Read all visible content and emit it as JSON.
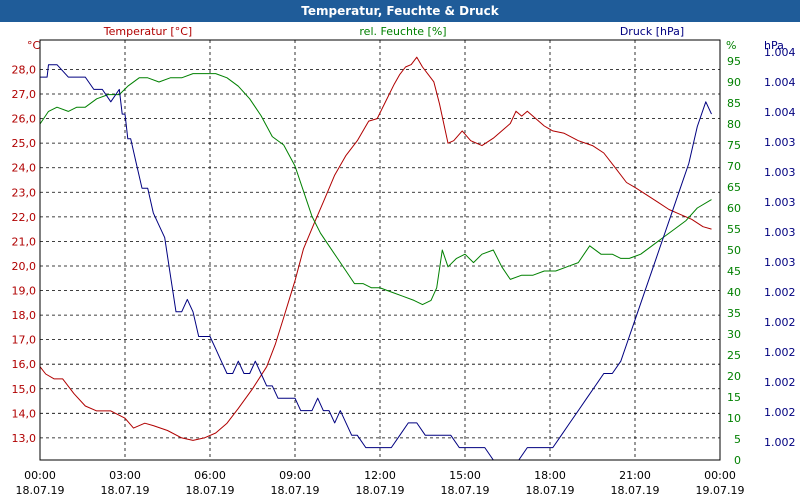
{
  "chart_data": {
    "type": "line",
    "title": "Temperatur, Feuchte & Druck",
    "x_ticks": [
      {
        "time": "00:00",
        "date": "18.07.19"
      },
      {
        "time": "03:00",
        "date": "18.07.19"
      },
      {
        "time": "06:00",
        "date": "18.07.19"
      },
      {
        "time": "09:00",
        "date": "18.07.19"
      },
      {
        "time": "12:00",
        "date": "18.07.19"
      },
      {
        "time": "15:00",
        "date": "18.07.19"
      },
      {
        "time": "18:00",
        "date": "18.07.19"
      },
      {
        "time": "21:00",
        "date": "18.07.19"
      },
      {
        "time": "00:00",
        "date": "19.07.19"
      }
    ],
    "x_range_hours": [
      0,
      24
    ],
    "axes": {
      "temperature": {
        "unit_label": "°C",
        "legend": "Temperatur [°C]",
        "color": "#b00000",
        "range": [
          12.1,
          29.2
        ],
        "ticks": [
          "13,0",
          "14,0",
          "15,0",
          "16,0",
          "17,0",
          "18,0",
          "19,0",
          "20,0",
          "21,0",
          "22,0",
          "23,0",
          "24,0",
          "25,0",
          "26,0",
          "27,0",
          "28,0"
        ]
      },
      "humidity": {
        "unit_label": "%",
        "legend": "rel. Feuchte [%]",
        "color": "#008000",
        "range": [
          0,
          100
        ],
        "ticks": [
          "0",
          "5",
          "10",
          "15",
          "20",
          "25",
          "30",
          "35",
          "40",
          "45",
          "50",
          "55",
          "60",
          "65",
          "70",
          "75",
          "80",
          "85",
          "90",
          "95"
        ]
      },
      "pressure": {
        "unit_label": "hPa",
        "legend": "Druck [hPa]",
        "color": "#000080",
        "range": [
          0,
          17
        ],
        "ticks": [
          "1.002",
          "1.002",
          "1.002",
          "1.002",
          "1.002",
          "1.002",
          "1.003",
          "1.003",
          "1.003",
          "1.003",
          "1.003",
          "1.004",
          "1.004",
          "1.004"
        ]
      }
    },
    "series": [
      {
        "name": "Temperatur [°C]",
        "axis": "temperature",
        "color": "#b00000",
        "x": [
          0,
          0.2,
          0.5,
          0.8,
          1.2,
          1.6,
          2.0,
          2.5,
          3.0,
          3.3,
          3.7,
          4.0,
          4.5,
          5.0,
          5.4,
          5.8,
          6.2,
          6.6,
          7.0,
          7.5,
          8.0,
          8.3,
          8.6,
          9.0,
          9.3,
          9.7,
          10.0,
          10.4,
          10.8,
          11.2,
          11.6,
          11.9,
          12.2,
          12.5,
          12.7,
          12.9,
          13.1,
          13.3,
          13.5,
          13.7,
          13.9,
          14.1,
          14.4,
          14.6,
          14.9,
          15.2,
          15.6,
          16.0,
          16.4,
          16.6,
          16.8,
          17.0,
          17.2,
          17.5,
          17.8,
          18.1,
          18.5,
          19.0,
          19.5,
          19.9,
          20.3,
          20.7,
          21.0,
          21.4,
          21.8,
          22.2,
          22.6,
          23.0,
          23.4,
          23.7
        ],
        "y": [
          15.9,
          15.6,
          15.4,
          15.4,
          14.8,
          14.3,
          14.1,
          14.1,
          13.8,
          13.4,
          13.6,
          13.5,
          13.3,
          13.0,
          12.9,
          13.0,
          13.2,
          13.6,
          14.2,
          15.0,
          15.9,
          16.8,
          17.9,
          19.4,
          20.7,
          21.8,
          22.6,
          23.7,
          24.5,
          25.1,
          25.9,
          26.0,
          26.7,
          27.4,
          27.8,
          28.1,
          28.2,
          28.5,
          28.1,
          27.8,
          27.5,
          26.6,
          25.0,
          25.1,
          25.5,
          25.1,
          24.9,
          25.2,
          25.6,
          25.8,
          26.3,
          26.1,
          26.3,
          26.0,
          25.7,
          25.5,
          25.4,
          25.1,
          24.9,
          24.6,
          24.0,
          23.4,
          23.2,
          22.9,
          22.6,
          22.3,
          22.1,
          21.9,
          21.6,
          21.5
        ]
      },
      {
        "name": "rel. Feuchte [%]",
        "axis": "humidity",
        "color": "#008000",
        "x": [
          0,
          0.3,
          0.6,
          1.0,
          1.3,
          1.6,
          2.0,
          2.4,
          2.8,
          3.1,
          3.5,
          3.8,
          4.2,
          4.6,
          5.0,
          5.4,
          5.8,
          6.2,
          6.6,
          7.0,
          7.4,
          7.8,
          8.2,
          8.6,
          9.0,
          9.3,
          9.6,
          9.9,
          10.2,
          10.5,
          10.8,
          11.1,
          11.4,
          11.7,
          12.0,
          12.4,
          12.8,
          13.2,
          13.5,
          13.8,
          14.0,
          14.2,
          14.4,
          14.7,
          15.0,
          15.3,
          15.6,
          16.0,
          16.3,
          16.6,
          17.0,
          17.4,
          17.8,
          18.2,
          18.6,
          19.0,
          19.4,
          19.8,
          20.2,
          20.5,
          20.8,
          21.2,
          21.6,
          22.0,
          22.4,
          22.8,
          23.2,
          23.7
        ],
        "y": [
          80,
          83,
          84,
          83,
          84,
          84,
          86,
          87,
          87,
          89,
          91,
          91,
          90,
          91,
          91,
          92,
          92,
          92,
          91,
          89,
          86,
          82,
          77,
          75,
          70,
          64,
          58,
          54,
          51,
          48,
          45,
          42,
          42,
          41,
          41,
          40,
          39,
          38,
          37,
          38,
          41,
          50,
          46,
          48,
          49,
          47,
          49,
          50,
          46,
          43,
          44,
          44,
          45,
          45,
          46,
          47,
          51,
          49,
          49,
          48,
          48,
          49,
          51,
          53,
          55,
          57,
          60,
          62
        ]
      },
      {
        "name": "Druck [hPa]",
        "axis": "pressure",
        "color": "#000080",
        "x": [
          0,
          0.25,
          0.3,
          0.6,
          1.0,
          1.3,
          1.6,
          1.9,
          2.2,
          2.5,
          2.8,
          2.9,
          3.0,
          3.1,
          3.2,
          3.4,
          3.6,
          3.8,
          4.0,
          4.2,
          4.4,
          4.6,
          4.8,
          5.0,
          5.2,
          5.4,
          5.6,
          5.8,
          6.0,
          6.2,
          6.4,
          6.6,
          6.8,
          7.0,
          7.2,
          7.4,
          7.6,
          7.8,
          8.0,
          8.2,
          8.4,
          8.6,
          8.8,
          9.0,
          9.2,
          9.4,
          9.6,
          9.8,
          10.0,
          10.2,
          10.4,
          10.6,
          10.8,
          11.0,
          11.2,
          11.5,
          11.8,
          12.1,
          12.4,
          12.7,
          13.0,
          13.3,
          13.6,
          13.9,
          14.2,
          14.5,
          14.8,
          15.1,
          15.4,
          15.7,
          16.0,
          16.3,
          16.6,
          16.9,
          17.2,
          17.5,
          17.8,
          18.1,
          18.4,
          18.7,
          19.0,
          19.3,
          19.6,
          19.9,
          20.2,
          20.5,
          20.8,
          21.1,
          21.4,
          21.7,
          22.0,
          22.3,
          22.6,
          22.9,
          23.2,
          23.5,
          23.7
        ],
        "y": [
          15.5,
          15.5,
          16,
          16,
          15.5,
          15.5,
          15.5,
          15,
          15,
          14.5,
          15,
          14,
          14,
          13,
          13,
          12,
          11,
          11,
          10,
          9.5,
          9,
          7.5,
          6,
          6,
          6.5,
          6,
          5,
          5,
          5,
          4.5,
          4,
          3.5,
          3.5,
          4,
          3.5,
          3.5,
          4,
          3.5,
          3,
          3,
          2.5,
          2.5,
          2.5,
          2.5,
          2,
          2,
          2,
          2.5,
          2,
          2,
          1.5,
          2,
          1.5,
          1,
          1,
          0.5,
          0.5,
          0.5,
          0.5,
          1,
          1.5,
          1.5,
          1,
          1,
          1,
          1,
          0.5,
          0.5,
          0.5,
          0.5,
          0,
          0,
          0,
          0,
          0.5,
          0.5,
          0.5,
          0.5,
          1,
          1.5,
          2,
          2.5,
          3,
          3.5,
          3.5,
          4,
          5,
          6,
          7,
          8,
          9,
          10,
          11,
          12,
          13.5,
          14.5,
          14
        ]
      }
    ]
  }
}
